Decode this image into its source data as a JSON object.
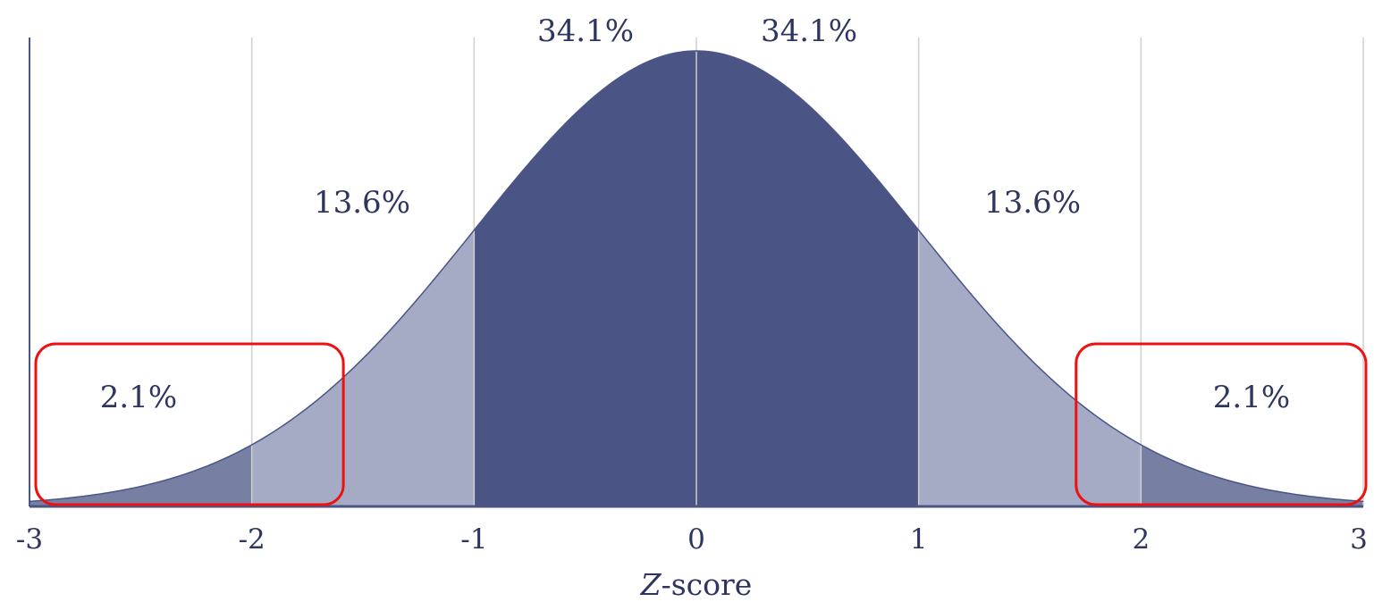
{
  "chart_data": {
    "type": "area",
    "title": "",
    "xlabel": {
      "variable": "Z",
      "suffix": "-score"
    },
    "xlim": [
      -3,
      3
    ],
    "ylim": [
      0,
      0.4
    ],
    "x_ticks": [
      -3,
      -2,
      -1,
      0,
      1,
      2,
      3
    ],
    "x_tick_labels": [
      "-3",
      "-2",
      "-1",
      "0",
      "1",
      "2",
      "3"
    ],
    "distribution": "standard normal",
    "grid": {
      "vertical": true,
      "horizontal": false
    },
    "regions": [
      {
        "from": -3,
        "to": -2,
        "percent_label": "2.1%",
        "color": "#7780a3"
      },
      {
        "from": -2,
        "to": -1,
        "percent_label": "13.6%",
        "color": "#a6abc5"
      },
      {
        "from": -1,
        "to": 0,
        "percent_label": "34.1%",
        "color": "#4a5586"
      },
      {
        "from": 0,
        "to": 1,
        "percent_label": "34.1%",
        "color": "#4a5586"
      },
      {
        "from": 1,
        "to": 2,
        "percent_label": "13.6%",
        "color": "#a6abc5"
      },
      {
        "from": 2,
        "to": 3,
        "percent_label": "2.1%",
        "color": "#7780a3"
      }
    ],
    "highlights": [
      {
        "from": -3,
        "to": -1.6,
        "color": "#ee1111"
      },
      {
        "from": 1.68,
        "to": 3,
        "color": "#ee1111"
      }
    ],
    "colors": {
      "axis": "#4a5586",
      "grid": "#cfcfcf",
      "text": "#2e3560"
    }
  }
}
